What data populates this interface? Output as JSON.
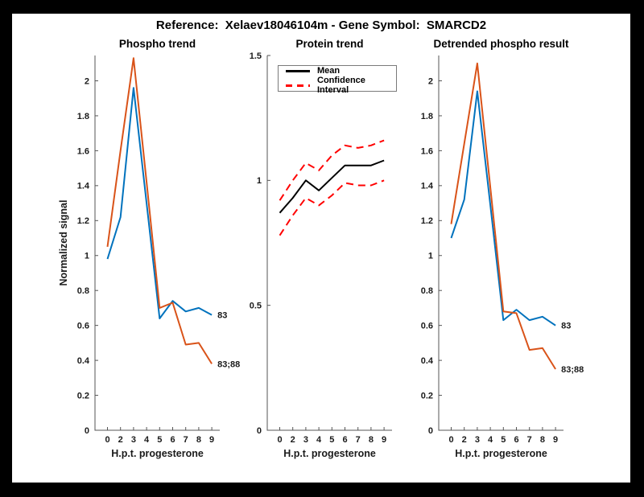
{
  "window": {
    "background": "#000000",
    "canvas_background": "#ffffff"
  },
  "header": {
    "title": "Reference:  Xelaev18046104m - Gene Symbol:  SMARCD2"
  },
  "colors": {
    "blue": "#0072BD",
    "orange": "#D95319",
    "red": "#FF0000",
    "black": "#000000",
    "axis": "#555555",
    "text": "#1a1a1a"
  },
  "chart_data": [
    {
      "type": "line",
      "title": "Phospho trend",
      "xlabel": "H.p.t. progesterone",
      "ylabel": "Normalized signal",
      "categories": [
        "0",
        "2",
        "3",
        "4",
        "5",
        "6",
        "7",
        "8",
        "9"
      ],
      "ylim": [
        0,
        2.145
      ],
      "grid": false,
      "yticks": {
        "values": [
          0,
          0.2,
          0.4,
          0.6,
          0.8,
          1,
          1.2,
          1.4,
          1.6,
          1.8,
          2
        ],
        "labels": [
          "0",
          "0.2",
          "0.4",
          "0.6",
          "0.8",
          "1",
          "1.2",
          "1.4",
          "1.6",
          "1.8",
          "2"
        ]
      },
      "series": [
        {
          "name": "83",
          "color": "blue",
          "line": "solid",
          "end_label": "83",
          "values": [
            0.98,
            1.22,
            1.96,
            1.3,
            0.64,
            0.74,
            0.68,
            0.7,
            0.66
          ]
        },
        {
          "name": "83;88",
          "color": "orange",
          "line": "solid",
          "end_label": "83;88",
          "values": [
            1.05,
            1.6,
            2.13,
            1.42,
            0.7,
            0.73,
            0.49,
            0.5,
            0.38
          ]
        }
      ]
    },
    {
      "type": "line",
      "title": "Protein trend",
      "xlabel": "H.p.t. progesterone",
      "ylabel": "",
      "categories": [
        "0",
        "2",
        "3",
        "4",
        "5",
        "6",
        "7",
        "8",
        "9"
      ],
      "ylim": [
        0,
        1.5
      ],
      "grid": false,
      "yticks": {
        "values": [
          0,
          0.5,
          1,
          1.5
        ],
        "labels": [
          "0",
          "0.5",
          "1",
          "1.5"
        ]
      },
      "legend": {
        "position": "top-left",
        "entries": [
          {
            "label": "Mean",
            "color": "black",
            "line": "solid"
          },
          {
            "label": "Confidence Interval",
            "color": "red",
            "line": "dashed"
          }
        ]
      },
      "series": [
        {
          "name": "Mean",
          "color": "black",
          "line": "solid",
          "values": [
            0.87,
            0.93,
            1.0,
            0.96,
            1.01,
            1.06,
            1.06,
            1.06,
            1.08
          ]
        },
        {
          "name": "Confidence Interval upper",
          "color": "red",
          "line": "dashed",
          "values": [
            0.92,
            1.0,
            1.07,
            1.04,
            1.1,
            1.14,
            1.13,
            1.14,
            1.16
          ]
        },
        {
          "name": "Confidence Interval lower",
          "color": "red",
          "line": "dashed",
          "values": [
            0.78,
            0.86,
            0.93,
            0.9,
            0.94,
            0.99,
            0.98,
            0.98,
            1.0
          ]
        }
      ]
    },
    {
      "type": "line",
      "title": "Detrended phospho result",
      "xlabel": "H.p.t. progesterone",
      "ylabel": "",
      "categories": [
        "0",
        "2",
        "3",
        "4",
        "5",
        "6",
        "7",
        "8",
        "9"
      ],
      "ylim": [
        0,
        2.145
      ],
      "grid": false,
      "yticks": {
        "values": [
          0,
          0.2,
          0.4,
          0.6,
          0.8,
          1,
          1.2,
          1.4,
          1.6,
          1.8,
          2
        ],
        "labels": [
          "0",
          "0.2",
          "0.4",
          "0.6",
          "0.8",
          "1",
          "1.2",
          "1.4",
          "1.6",
          "1.8",
          "2"
        ]
      },
      "series": [
        {
          "name": "83",
          "color": "blue",
          "line": "solid",
          "end_label": "83",
          "values": [
            1.1,
            1.32,
            1.94,
            1.29,
            0.63,
            0.69,
            0.63,
            0.65,
            0.6
          ]
        },
        {
          "name": "83;88",
          "color": "orange",
          "line": "solid",
          "end_label": "83;88",
          "values": [
            1.18,
            1.64,
            2.1,
            1.39,
            0.68,
            0.67,
            0.46,
            0.47,
            0.35
          ]
        }
      ]
    }
  ]
}
